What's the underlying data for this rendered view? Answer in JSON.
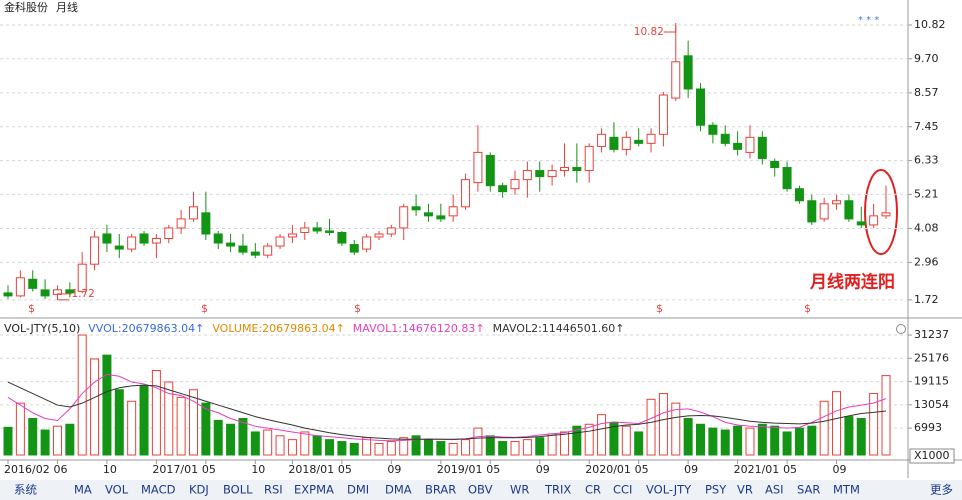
{
  "header": {
    "stock": "金科股份",
    "period": "月线"
  },
  "chart_data": [
    {
      "type": "candlestick",
      "categories": [
        "2016/02",
        null,
        null,
        null,
        "06",
        null,
        null,
        null,
        "10",
        null,
        null,
        null,
        "2017/01",
        null,
        null,
        null,
        "05",
        null,
        null,
        null,
        "10",
        null,
        null,
        "2018/01",
        null,
        null,
        null,
        "05",
        null,
        null,
        null,
        "09",
        null,
        null,
        null,
        "2019/01",
        null,
        null,
        null,
        "05",
        null,
        null,
        null,
        "09",
        null,
        null,
        null,
        "2020/01",
        null,
        null,
        null,
        "05",
        null,
        null,
        null,
        "09",
        null,
        null,
        null,
        "2021/01",
        null,
        null,
        null,
        "05",
        null,
        null,
        null,
        "09",
        null,
        null,
        null,
        null
      ],
      "open": [
        1.95,
        1.85,
        2.4,
        2.05,
        1.9,
        2.05,
        2.0,
        2.9,
        3.9,
        3.5,
        3.4,
        3.9,
        3.6,
        3.75,
        4.1,
        4.4,
        4.6,
        3.9,
        3.6,
        3.5,
        3.3,
        3.2,
        3.5,
        3.8,
        3.95,
        4.1,
        4.0,
        3.95,
        3.55,
        3.4,
        3.8,
        3.9,
        4.1,
        4.8,
        4.6,
        4.5,
        4.5,
        4.8,
        5.6,
        6.5,
        5.5,
        5.4,
        5.7,
        6.0,
        5.8,
        6.0,
        6.1,
        6.0,
        6.8,
        7.1,
        6.7,
        7.0,
        6.9,
        7.2,
        8.4,
        9.8,
        8.7,
        7.5,
        7.2,
        6.9,
        6.6,
        7.1,
        6.3,
        6.1,
        5.4,
        5.0,
        4.4,
        4.9,
        5.0,
        4.3,
        4.2,
        4.5
      ],
      "high": [
        2.2,
        2.7,
        2.7,
        2.4,
        2.2,
        2.3,
        3.3,
        4.0,
        4.2,
        3.9,
        3.9,
        4.0,
        3.9,
        4.2,
        4.7,
        5.3,
        5.3,
        4.0,
        3.9,
        3.9,
        3.6,
        3.6,
        3.9,
        4.2,
        4.3,
        4.3,
        4.4,
        4.0,
        3.7,
        3.9,
        4.0,
        4.2,
        4.9,
        5.2,
        4.9,
        4.9,
        5.2,
        5.9,
        7.5,
        6.6,
        5.6,
        6.0,
        6.3,
        6.3,
        6.2,
        6.9,
        6.9,
        6.9,
        7.4,
        7.6,
        7.3,
        7.4,
        7.4,
        8.6,
        10.82,
        10.3,
        8.9,
        7.6,
        7.5,
        7.3,
        7.5,
        7.3,
        6.4,
        6.3,
        5.5,
        5.2,
        5.1,
        5.2,
        5.2,
        4.8,
        4.9,
        5.5
      ],
      "low": [
        1.75,
        1.8,
        2.0,
        1.75,
        1.72,
        1.8,
        1.95,
        2.7,
        3.3,
        3.1,
        3.3,
        3.5,
        3.1,
        3.6,
        3.9,
        4.3,
        3.7,
        3.4,
        3.3,
        3.2,
        3.1,
        3.1,
        3.4,
        3.6,
        3.7,
        3.9,
        3.85,
        3.5,
        3.2,
        3.3,
        3.7,
        3.8,
        3.7,
        4.5,
        4.3,
        4.3,
        4.3,
        4.7,
        5.3,
        5.3,
        5.1,
        5.2,
        5.1,
        5.3,
        5.5,
        5.8,
        5.6,
        5.6,
        6.6,
        6.6,
        6.5,
        6.8,
        6.6,
        6.8,
        8.3,
        8.4,
        7.3,
        6.9,
        6.8,
        6.5,
        6.4,
        6.2,
        5.8,
        5.3,
        4.9,
        4.2,
        4.3,
        4.7,
        4.3,
        4.1,
        4.1,
        4.4
      ],
      "close": [
        1.85,
        2.45,
        2.1,
        1.85,
        2.05,
        1.95,
        2.9,
        3.8,
        3.6,
        3.4,
        3.8,
        3.6,
        3.75,
        4.1,
        4.4,
        4.8,
        3.9,
        3.6,
        3.5,
        3.3,
        3.2,
        3.5,
        3.8,
        3.9,
        4.1,
        4.0,
        3.95,
        3.6,
        3.3,
        3.8,
        3.9,
        4.1,
        4.8,
        4.7,
        4.5,
        4.4,
        4.8,
        5.7,
        6.6,
        5.5,
        5.3,
        5.7,
        6.0,
        5.8,
        6.0,
        6.1,
        6.0,
        6.8,
        7.2,
        6.7,
        7.1,
        6.9,
        7.2,
        8.5,
        9.6,
        8.7,
        7.5,
        7.2,
        6.9,
        6.7,
        7.1,
        6.4,
        6.1,
        5.4,
        5.0,
        4.3,
        4.9,
        5.0,
        4.4,
        4.2,
        4.5,
        4.6
      ],
      "up_color": "#e8413a",
      "down_color": "#149414",
      "ylim": [
        1.35,
        11.15
      ],
      "yticks": [
        1.72,
        2.96,
        4.08,
        5.21,
        6.33,
        7.45,
        8.57,
        {
          "value": 9.7,
          "label": "9.70"
        },
        10.82
      ],
      "grid": true,
      "annotations": [
        {
          "value": 10.82,
          "field": "high"
        },
        {
          "value": 1.72,
          "field": "low"
        }
      ],
      "note": "月线两连阳"
    },
    {
      "type": "volume",
      "legend": [
        {
          "text": "VOL-JTY(5,10)",
          "color": "#222222"
        },
        {
          "text": "VVOL:20679863.04↑",
          "color": "#3a6ad8"
        },
        {
          "text": "VOLUME:20679863.04↑",
          "color": "#e08a00"
        },
        {
          "text": "MAVOL1:14676120.83↑",
          "color": "#e040c0"
        },
        {
          "text": "MAVOL2:11446501.60↑",
          "color": "#333333"
        }
      ],
      "values": [
        7200,
        13500,
        9500,
        6500,
        7500,
        8000,
        31237,
        25000,
        26000,
        17000,
        14000,
        18000,
        22000,
        19000,
        15000,
        17000,
        13500,
        9000,
        8000,
        9500,
        6000,
        6500,
        5000,
        4000,
        6000,
        5000,
        4000,
        3500,
        3000,
        4500,
        3000,
        3500,
        4500,
        5000,
        4000,
        3500,
        3000,
        4000,
        7000,
        5000,
        3500,
        3500,
        4000,
        4500,
        5500,
        6000,
        7500,
        8000,
        10500,
        8500,
        7500,
        6000,
        14500,
        16000,
        13500,
        9500,
        8000,
        7000,
        6500,
        7500,
        7000,
        8000,
        7500,
        6000,
        7000,
        7500,
        14000,
        16500,
        10000,
        9500,
        16000,
        20679.86
      ],
      "series": [
        {
          "name": "MAVOL1",
          "color": "#e040c0",
          "values": [
            15000,
            13000,
            11000,
            9500,
            9000,
            12000,
            16000,
            19000,
            21000,
            20500,
            19000,
            18500,
            17500,
            16000,
            15500,
            14000,
            12000,
            11000,
            9500,
            8500,
            7500,
            7000,
            6500,
            6000,
            5500,
            5000,
            4800,
            4500,
            4200,
            4000,
            3800,
            3700,
            3800,
            4000,
            4200,
            4100,
            4000,
            4200,
            4800,
            4900,
            4700,
            4600,
            4800,
            5200,
            5500,
            5800,
            6500,
            7200,
            8200,
            8600,
            8400,
            8200,
            9500,
            11000,
            11800,
            12000,
            11200,
            10000,
            8500,
            7800,
            7500,
            7400,
            7200,
            7000,
            7200,
            8500,
            10000,
            11500,
            12500,
            13000,
            13500,
            14676.12
          ]
        },
        {
          "name": "MAVOL2",
          "color": "#333333",
          "values": [
            19000,
            17500,
            16000,
            14500,
            13000,
            12500,
            13500,
            15000,
            16500,
            17500,
            18000,
            18200,
            18000,
            17000,
            16000,
            15000,
            14000,
            13000,
            12000,
            11000,
            10000,
            9200,
            8500,
            7800,
            7000,
            6400,
            5800,
            5300,
            4900,
            4600,
            4400,
            4200,
            4100,
            4100,
            4100,
            4100,
            4100,
            4200,
            4400,
            4500,
            4500,
            4500,
            4600,
            4800,
            5100,
            5400,
            5800,
            6200,
            6800,
            7400,
            7800,
            8000,
            8500,
            9200,
            9800,
            10200,
            10300,
            10200,
            9800,
            9300,
            8800,
            8500,
            8300,
            8200,
            8100,
            8300,
            8800,
            9500,
            10200,
            10800,
            11100,
            11446.5
          ]
        }
      ],
      "ylim": [
        0,
        33850
      ],
      "yticks": [
        6993,
        13054,
        19115,
        25176,
        31237
      ],
      "unit_label": "X1000",
      "grid": true
    }
  ],
  "tabs": [
    "系统",
    "MA",
    "VOL",
    "MACD",
    "KDJ",
    "BOLL",
    "RSI",
    "EXPMA",
    "DMI",
    "DMA",
    "BRAR",
    "OBV",
    "WR",
    "TRIX",
    "CR",
    "CCI",
    "VOL-JTY",
    "PSY",
    "VR",
    "ASI",
    "SAR",
    "MTM",
    "更多"
  ]
}
